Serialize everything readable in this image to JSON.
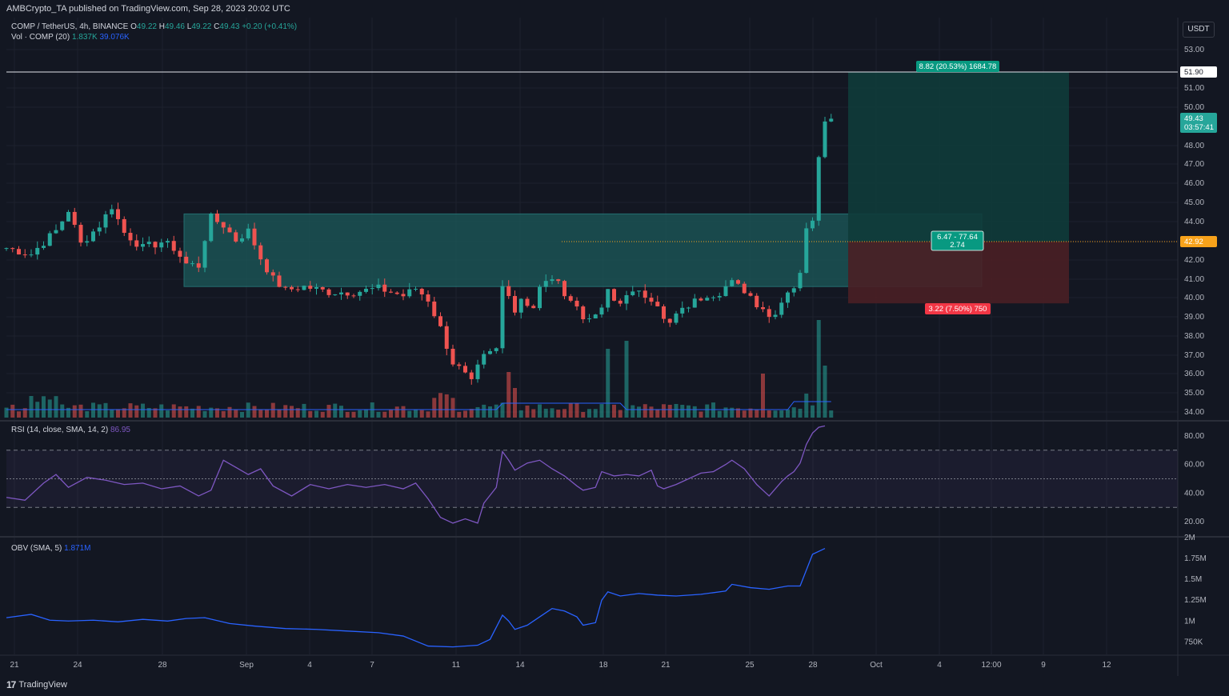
{
  "header": {
    "published_by": "AMBCrypto_TA published on TradingView.com, Sep 28, 2023 20:02 UTC"
  },
  "symbol_legend": {
    "pair": "COMP / TetherUS, 4h, BINANCE",
    "o_label": "O",
    "o": "49.22",
    "h_label": "H",
    "h": "49.46",
    "l_label": "L",
    "l": "49.22",
    "c_label": "C",
    "c": "49.43",
    "change": "+0.20 (+0.41%)"
  },
  "volume_legend": {
    "label": "Vol · COMP (20)",
    "v1": "1.837K",
    "v2": "39.076K"
  },
  "rsi_legend": {
    "label": "RSI (14, close, SMA, 14, 2)",
    "value": "86.95"
  },
  "obv_legend": {
    "label": "OBV (SMA, 5)",
    "value": "1.871M"
  },
  "currency_button": "USDT",
  "price_axis": [
    "53.00",
    "51.00",
    "50.00",
    "48.00",
    "47.00",
    "46.00",
    "45.00",
    "44.00",
    "42.00",
    "41.00",
    "40.00",
    "39.00",
    "38.00",
    "37.00",
    "36.00",
    "35.00",
    "34.00"
  ],
  "rsi_axis": [
    "80.00",
    "60.00",
    "40.00",
    "20.00"
  ],
  "obv_axis": [
    "2M",
    "1.75M",
    "1.5M",
    "1.25M",
    "1M",
    "750K"
  ],
  "time_axis": [
    "21",
    "24",
    "28",
    "Sep",
    "4",
    "7",
    "11",
    "14",
    "18",
    "21",
    "25",
    "28",
    "Oct",
    "4",
    "12:00",
    "9",
    "12"
  ],
  "price_labels": {
    "level_5190": "51.90",
    "last": "49.43",
    "countdown": "03:57:41",
    "entry": "42.92"
  },
  "position": {
    "target_label": "8.82 (20.53%) 1684.78",
    "middle_line1": "6.47 - 77.64",
    "middle_line2": "2.74",
    "stop_label": "3.22 (7.50%) 750"
  },
  "footer": {
    "brand": "TradingView"
  },
  "colors": {
    "bg": "#131722",
    "up": "#26a69a",
    "down": "#ef5350",
    "grid": "#1e222d",
    "rsi": "#7e57c2",
    "obv": "#2962ff",
    "entry": "#f7a21b",
    "zone": "#1c5a5a",
    "profit": "#0f3b3a",
    "loss": "#4a1f25"
  },
  "chart_data": {
    "type": "candlestick",
    "title": "COMP / TetherUS, 4h, BINANCE",
    "x_range": [
      "Aug 20, 2023",
      "Sep 28, 2023"
    ],
    "ylim": [
      33.5,
      53.5
    ],
    "price_path": [
      [
        0,
        42.6
      ],
      [
        4,
        42.3
      ],
      [
        8,
        43.5
      ],
      [
        10,
        44.6
      ],
      [
        12,
        42.8
      ],
      [
        15,
        43.8
      ],
      [
        17,
        44.8
      ],
      [
        19,
        43.4
      ],
      [
        22,
        42.6
      ],
      [
        25,
        42.9
      ],
      [
        27,
        42.6
      ],
      [
        29,
        41.8
      ],
      [
        31,
        41.7
      ],
      [
        32,
        43.1
      ],
      [
        33,
        44.2
      ],
      [
        35,
        43.8
      ],
      [
        37,
        43.0
      ],
      [
        39,
        43.5
      ],
      [
        41,
        42.1
      ],
      [
        43,
        41.0
      ],
      [
        45,
        40.4
      ],
      [
        48,
        40.6
      ],
      [
        52,
        40.3
      ],
      [
        56,
        40.3
      ],
      [
        60,
        40.5
      ],
      [
        64,
        40.1
      ],
      [
        66,
        40.5
      ],
      [
        68,
        39.9
      ],
      [
        70,
        38.4
      ],
      [
        71,
        37.5
      ],
      [
        72,
        36.6
      ],
      [
        73,
        36.3
      ],
      [
        74,
        35.9
      ],
      [
        75,
        35.5
      ],
      [
        76,
        36.3
      ],
      [
        77,
        36.9
      ],
      [
        78,
        37.1
      ],
      [
        79,
        37.3
      ],
      [
        80,
        40.6
      ],
      [
        81,
        40.3
      ],
      [
        82,
        39.3
      ],
      [
        83,
        40.0
      ],
      [
        84,
        39.7
      ],
      [
        85,
        39.5
      ],
      [
        86,
        40.5
      ],
      [
        87,
        40.8
      ],
      [
        88,
        41.1
      ],
      [
        89,
        40.7
      ],
      [
        90,
        40.3
      ],
      [
        92,
        39.5
      ],
      [
        93,
        38.9
      ],
      [
        94,
        39.1
      ],
      [
        95,
        38.9
      ],
      [
        96,
        39.5
      ],
      [
        97,
        40.3
      ],
      [
        98,
        39.8
      ],
      [
        99,
        39.7
      ],
      [
        100,
        40.3
      ],
      [
        101,
        40.2
      ],
      [
        102,
        40.2
      ],
      [
        104,
        40.0
      ],
      [
        105,
        39.7
      ],
      [
        106,
        38.8
      ],
      [
        107,
        38.6
      ],
      [
        108,
        39.1
      ],
      [
        109,
        39.3
      ],
      [
        110,
        39.6
      ],
      [
        111,
        39.8
      ],
      [
        112,
        40.0
      ],
      [
        113,
        40.2
      ],
      [
        114,
        40.2
      ],
      [
        115,
        40.3
      ],
      [
        116,
        40.6
      ],
      [
        117,
        40.8
      ],
      [
        118,
        40.6
      ],
      [
        119,
        40.4
      ],
      [
        120,
        40.1
      ],
      [
        121,
        39.7
      ],
      [
        122,
        39.5
      ],
      [
        123,
        39.0
      ],
      [
        124,
        39.3
      ],
      [
        125,
        39.8
      ],
      [
        126,
        40.4
      ],
      [
        127,
        40.6
      ],
      [
        128,
        41.2
      ],
      [
        129,
        43.8
      ],
      [
        130,
        44.2
      ],
      [
        131,
        47.6
      ],
      [
        132,
        49.2
      ],
      [
        133,
        49.4
      ]
    ],
    "resistance_zone": [
      40.6,
      44.4
    ],
    "horizontal_level": 51.9,
    "last_price": 49.43,
    "long_position": {
      "entry": 42.92,
      "target": 51.9,
      "stop": 39.7
    },
    "volume": {
      "name": "Vol · COMP (20)",
      "spikes_on": [
        "Sep 13",
        "Sep 17",
        "Sep 25",
        "Sep 28"
      ]
    },
    "rsi": {
      "name": "RSI (14, close, SMA, 14, 2)",
      "ylim": [
        10,
        90
      ],
      "bands": [
        30,
        50,
        70
      ],
      "values": [
        [
          0,
          37
        ],
        [
          3,
          35
        ],
        [
          6,
          47
        ],
        [
          8,
          53
        ],
        [
          10,
          44
        ],
        [
          13,
          51
        ],
        [
          16,
          49
        ],
        [
          19,
          46
        ],
        [
          22,
          47
        ],
        [
          25,
          43
        ],
        [
          28,
          45
        ],
        [
          31,
          38
        ],
        [
          33,
          42
        ],
        [
          35,
          63
        ],
        [
          37,
          58
        ],
        [
          39,
          53
        ],
        [
          41,
          57
        ],
        [
          43,
          45
        ],
        [
          46,
          38
        ],
        [
          49,
          46
        ],
        [
          52,
          43
        ],
        [
          55,
          46
        ],
        [
          58,
          44
        ],
        [
          61,
          46
        ],
        [
          64,
          43
        ],
        [
          66,
          47
        ],
        [
          68,
          36
        ],
        [
          70,
          23
        ],
        [
          72,
          19
        ],
        [
          74,
          22
        ],
        [
          76,
          19
        ],
        [
          77,
          33
        ],
        [
          79,
          44
        ],
        [
          80,
          69
        ],
        [
          81,
          63
        ],
        [
          82,
          56
        ],
        [
          84,
          61
        ],
        [
          86,
          63
        ],
        [
          88,
          57
        ],
        [
          90,
          52
        ],
        [
          92,
          45
        ],
        [
          93,
          42
        ],
        [
          95,
          44
        ],
        [
          96,
          55
        ],
        [
          98,
          52
        ],
        [
          100,
          53
        ],
        [
          102,
          52
        ],
        [
          104,
          56
        ],
        [
          105,
          45
        ],
        [
          106,
          43
        ],
        [
          108,
          46
        ],
        [
          110,
          50
        ],
        [
          112,
          54
        ],
        [
          114,
          55
        ],
        [
          116,
          60
        ],
        [
          117,
          63
        ],
        [
          119,
          57
        ],
        [
          121,
          46
        ],
        [
          122,
          42
        ],
        [
          123,
          38
        ],
        [
          125,
          48
        ],
        [
          126,
          52
        ],
        [
          127,
          55
        ],
        [
          128,
          61
        ],
        [
          129,
          74
        ],
        [
          130,
          82
        ],
        [
          131,
          86
        ],
        [
          132,
          87
        ]
      ]
    },
    "obv": {
      "name": "OBV (SMA, 5)",
      "ylim": [
        0.6,
        2.0
      ],
      "unit": "M",
      "values": [
        [
          0,
          1.04
        ],
        [
          4,
          1.08
        ],
        [
          7,
          1.01
        ],
        [
          10,
          1.0
        ],
        [
          14,
          1.01
        ],
        [
          18,
          0.99
        ],
        [
          22,
          1.02
        ],
        [
          26,
          1.0
        ],
        [
          29,
          1.03
        ],
        [
          32,
          1.04
        ],
        [
          36,
          0.97
        ],
        [
          40,
          0.94
        ],
        [
          45,
          0.91
        ],
        [
          50,
          0.9
        ],
        [
          55,
          0.88
        ],
        [
          60,
          0.86
        ],
        [
          64,
          0.82
        ],
        [
          66,
          0.76
        ],
        [
          68,
          0.7
        ],
        [
          72,
          0.69
        ],
        [
          76,
          0.71
        ],
        [
          78,
          0.78
        ],
        [
          80,
          1.07
        ],
        [
          81,
          1.0
        ],
        [
          82,
          0.9
        ],
        [
          84,
          0.95
        ],
        [
          86,
          1.05
        ],
        [
          88,
          1.15
        ],
        [
          90,
          1.12
        ],
        [
          92,
          1.05
        ],
        [
          93,
          0.95
        ],
        [
          95,
          0.98
        ],
        [
          96,
          1.25
        ],
        [
          97,
          1.35
        ],
        [
          99,
          1.3
        ],
        [
          102,
          1.33
        ],
        [
          105,
          1.31
        ],
        [
          108,
          1.3
        ],
        [
          112,
          1.32
        ],
        [
          116,
          1.36
        ],
        [
          117,
          1.44
        ],
        [
          120,
          1.4
        ],
        [
          123,
          1.38
        ],
        [
          126,
          1.42
        ],
        [
          128,
          1.42
        ],
        [
          130,
          1.8
        ],
        [
          132,
          1.87
        ]
      ]
    }
  }
}
